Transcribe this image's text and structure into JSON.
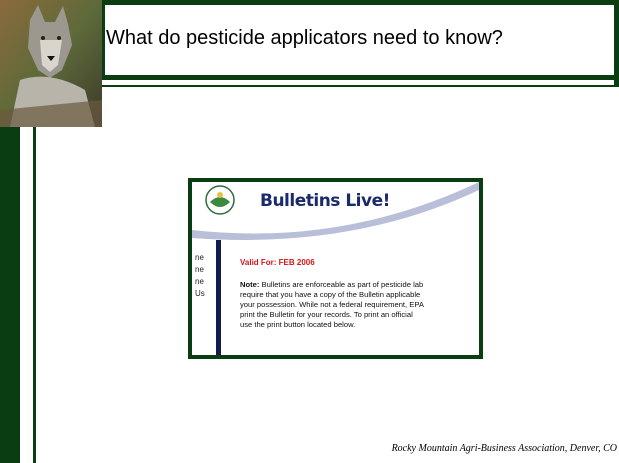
{
  "slide": {
    "title": "What do pesticide applicators need to know?",
    "footer": "Rocky Mountain Agri-Business Association, Denver, CO",
    "screenshot": {
      "heading": "Bulletins Live!",
      "side_fragments": [
        "ne",
        "ne",
        "ne",
        "Us"
      ],
      "valid_for": "Valid For: FEB 2006",
      "note_label": "Note:",
      "note_lines": [
        "Bulletins are enforceable as part of pesticide lab",
        "require that you have a copy of the Bulletin applicable",
        "your possession. While not a federal requirement, EPA",
        "print the Bulletin for your records. To print an official",
        "use the print button located below."
      ]
    }
  }
}
